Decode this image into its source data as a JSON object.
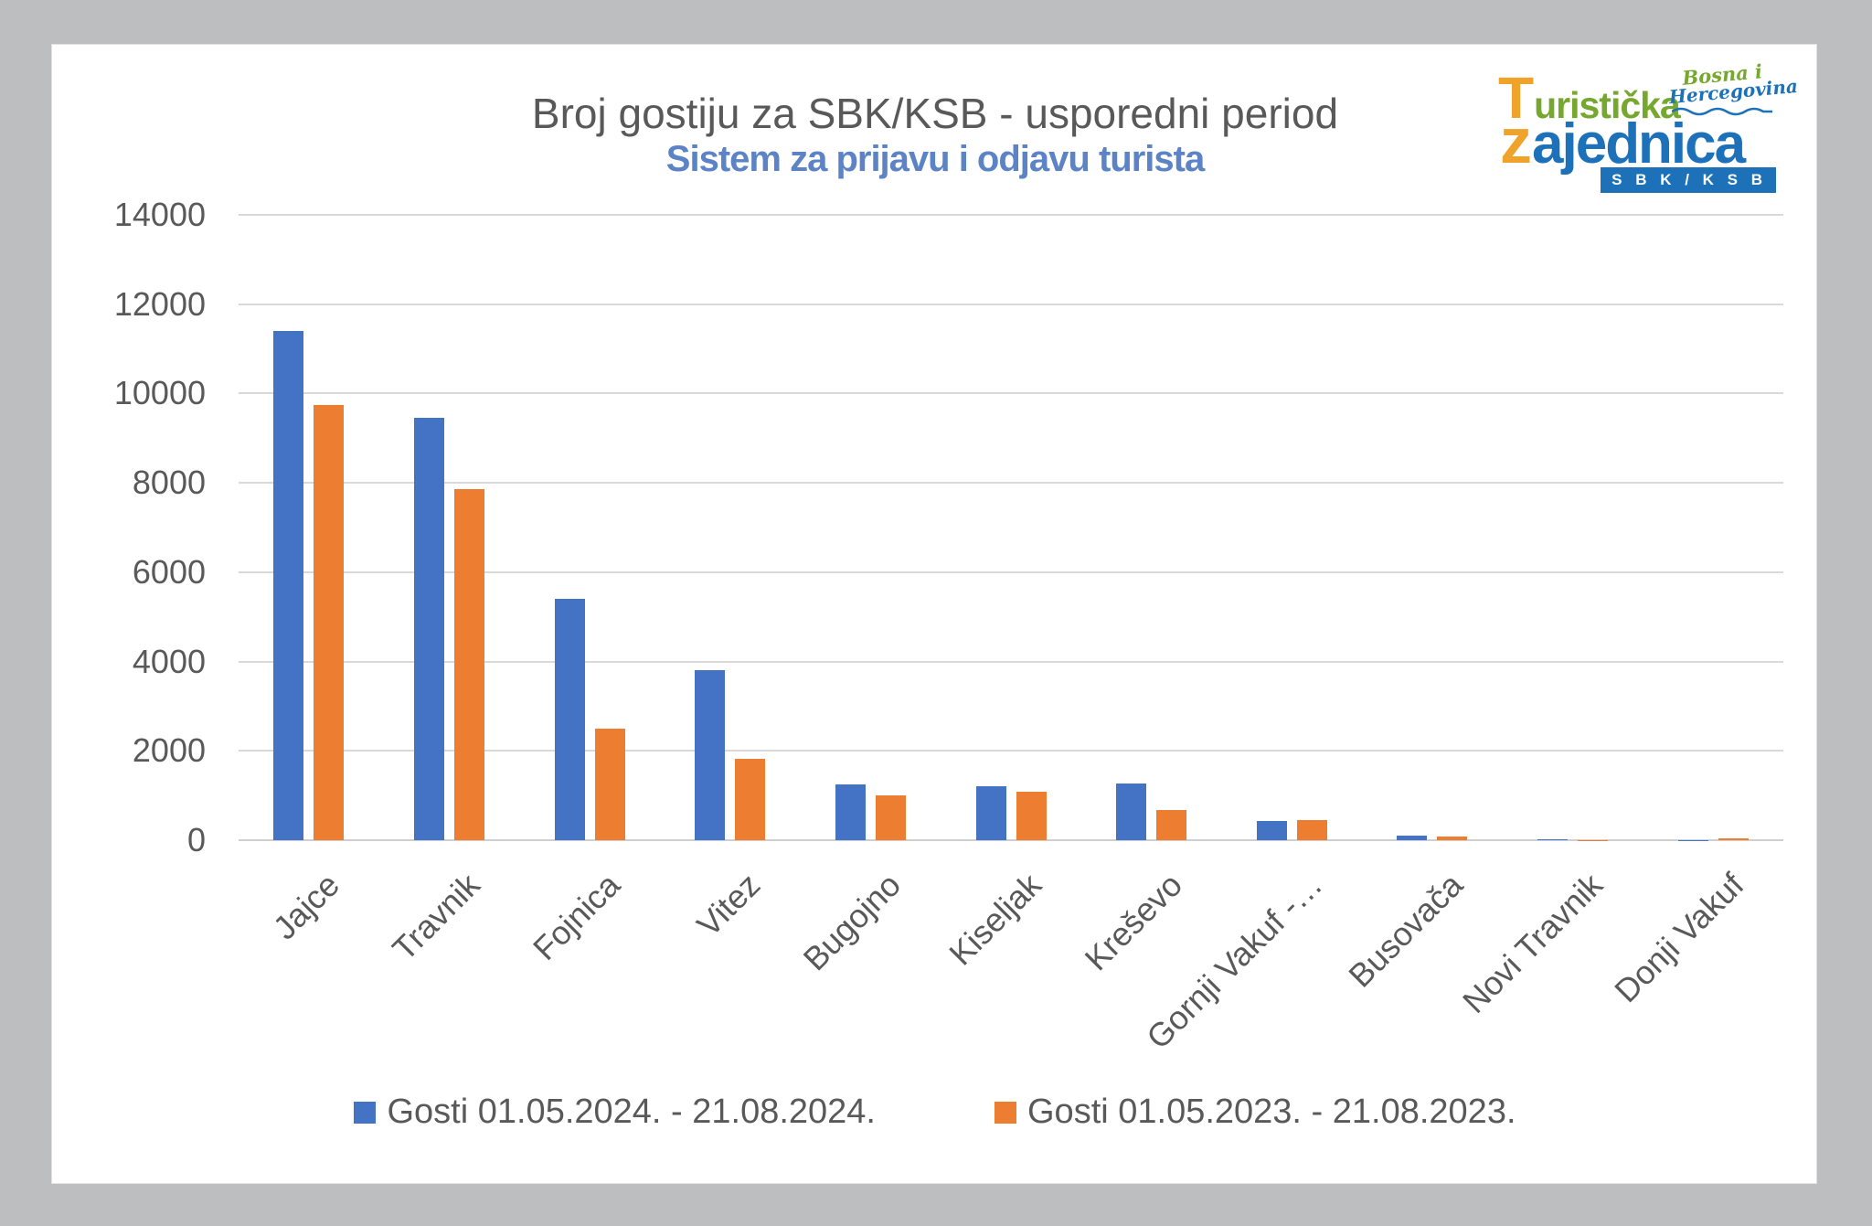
{
  "header": {
    "title": "Broj gostiju za SBK/KSB - usporedni period",
    "subtitle": "Sistem za prijavu i odjavu turista"
  },
  "logo": {
    "word1_initial": "T",
    "word1_rest": "uristička",
    "word2_initial": "z",
    "word2_rest": "ajednica",
    "script_green": "Bosna i",
    "script_blue": "Hercegovina",
    "band": "S B K / K S B"
  },
  "legend": [
    {
      "label": "Gosti 01.05.2024. - 21.08.2024.",
      "color": "#4472C4"
    },
    {
      "label": "Gosti 01.05.2023. - 21.08.2023.",
      "color": "#ED7D31"
    }
  ],
  "colors": {
    "background_gray": "#bcbec0",
    "card_white": "#ffffff",
    "series_blue": "#4472C4",
    "series_orange": "#ED7D31",
    "gridline": "#d9d9d9",
    "axis_text": "#595959",
    "title_text": "#595959",
    "subtitle_blue": "#5b83c5",
    "logo_green": "#76a72e",
    "logo_orange": "#f0a32a",
    "logo_blue": "#1d71b8"
  },
  "chart_data": {
    "type": "bar",
    "title": "Broj gostiju za SBK/KSB - usporedni period",
    "subtitle": "Sistem za prijavu i odjavu turista",
    "categories": [
      "Jajce",
      "Travnik",
      "Fojnica",
      "Vitez",
      "Bugojno",
      "Kiseljak",
      "Kreševo",
      "Gornji Vakuf -…",
      "Busovača",
      "Novi Travnik",
      "Donji Vakuf"
    ],
    "series": [
      {
        "name": "Gosti 01.05.2024. - 21.08.2024.",
        "color": "#4472C4",
        "values": [
          11400,
          9450,
          5400,
          3800,
          1250,
          1210,
          1270,
          430,
          95,
          15,
          5
        ]
      },
      {
        "name": "Gosti 01.05.2023. - 21.08.2023.",
        "color": "#ED7D31",
        "values": [
          9750,
          7860,
          2500,
          1830,
          1010,
          1080,
          680,
          450,
          85,
          10,
          35
        ]
      }
    ],
    "xlabel": "",
    "ylabel": "",
    "ylim": [
      0,
      14000
    ],
    "yticks": [
      0,
      2000,
      4000,
      6000,
      8000,
      10000,
      12000,
      14000
    ],
    "grid": true,
    "legend_position": "bottom"
  }
}
